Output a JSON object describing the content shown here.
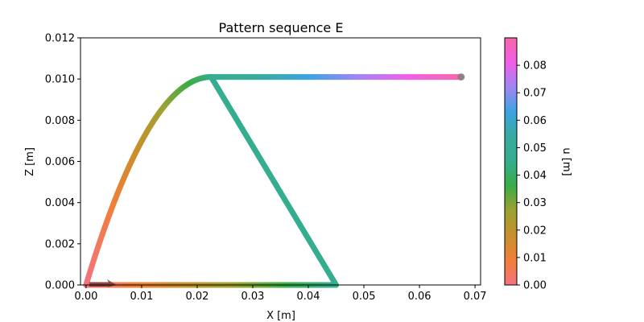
{
  "chart_data": {
    "type": "scatter",
    "title": "Pattern sequence E",
    "xlabel": "X [m]",
    "ylabel": "Z [m]",
    "xlim": [
      -0.001,
      0.071
    ],
    "ylim": [
      0,
      0.012
    ],
    "xticks": [
      0.0,
      0.01,
      0.02,
      0.03,
      0.04,
      0.05,
      0.06,
      0.07
    ],
    "xtick_labels": [
      "0.00",
      "0.01",
      "0.02",
      "0.03",
      "0.04",
      "0.05",
      "0.06",
      "0.07"
    ],
    "yticks": [
      0.0,
      0.002,
      0.004,
      0.006,
      0.008,
      0.01,
      0.012
    ],
    "ytick_labels": [
      "0.000",
      "0.002",
      "0.004",
      "0.006",
      "0.008",
      "0.010",
      "0.012"
    ],
    "grid": false,
    "colorbar": {
      "label": "u [m]",
      "range": [
        0,
        0.09
      ],
      "ticks": [
        0.0,
        0.01,
        0.02,
        0.03,
        0.04,
        0.05,
        0.06,
        0.07,
        0.08
      ],
      "tick_labels": [
        "0.00",
        "0.01",
        "0.02",
        "0.03",
        "0.04",
        "0.05",
        "0.06",
        "0.07",
        "0.08"
      ],
      "colors": [
        "#f4727e",
        "#f07f3a",
        "#c7902c",
        "#9da131",
        "#3aad44",
        "#35ad8f",
        "#39ab9e",
        "#3ba4e2",
        "#a186f4",
        "#f25ee8",
        "#f567a8"
      ]
    },
    "segments": [
      {
        "points": [
          [
            0.0,
            0.0
          ],
          [
            0.045,
            0.0
          ]
        ],
        "u": [
          0.0,
          0.045
        ]
      },
      {
        "points": [
          [
            0.045,
            0.0
          ],
          [
            0.0225,
            0.0101
          ]
        ],
        "u": [
          0.045,
          0.045
        ]
      },
      {
        "points": [
          [
            0.0225,
            0.0101
          ],
          [
            0.0,
            0.0
          ]
        ],
        "shape": "arc",
        "u": [
          0.045,
          0.0
        ]
      },
      {
        "points": [
          [
            0.0225,
            0.0101
          ],
          [
            0.0675,
            0.0101
          ]
        ],
        "u": [
          0.045,
          0.09
        ]
      }
    ],
    "start_arrow": {
      "from": [
        0.0,
        0.0
      ],
      "to": [
        0.0055,
        0.0
      ],
      "color": "#7a3b3b"
    },
    "end_marker": {
      "at": [
        0.0675,
        0.0101
      ],
      "color": "#7f7f7f"
    }
  }
}
